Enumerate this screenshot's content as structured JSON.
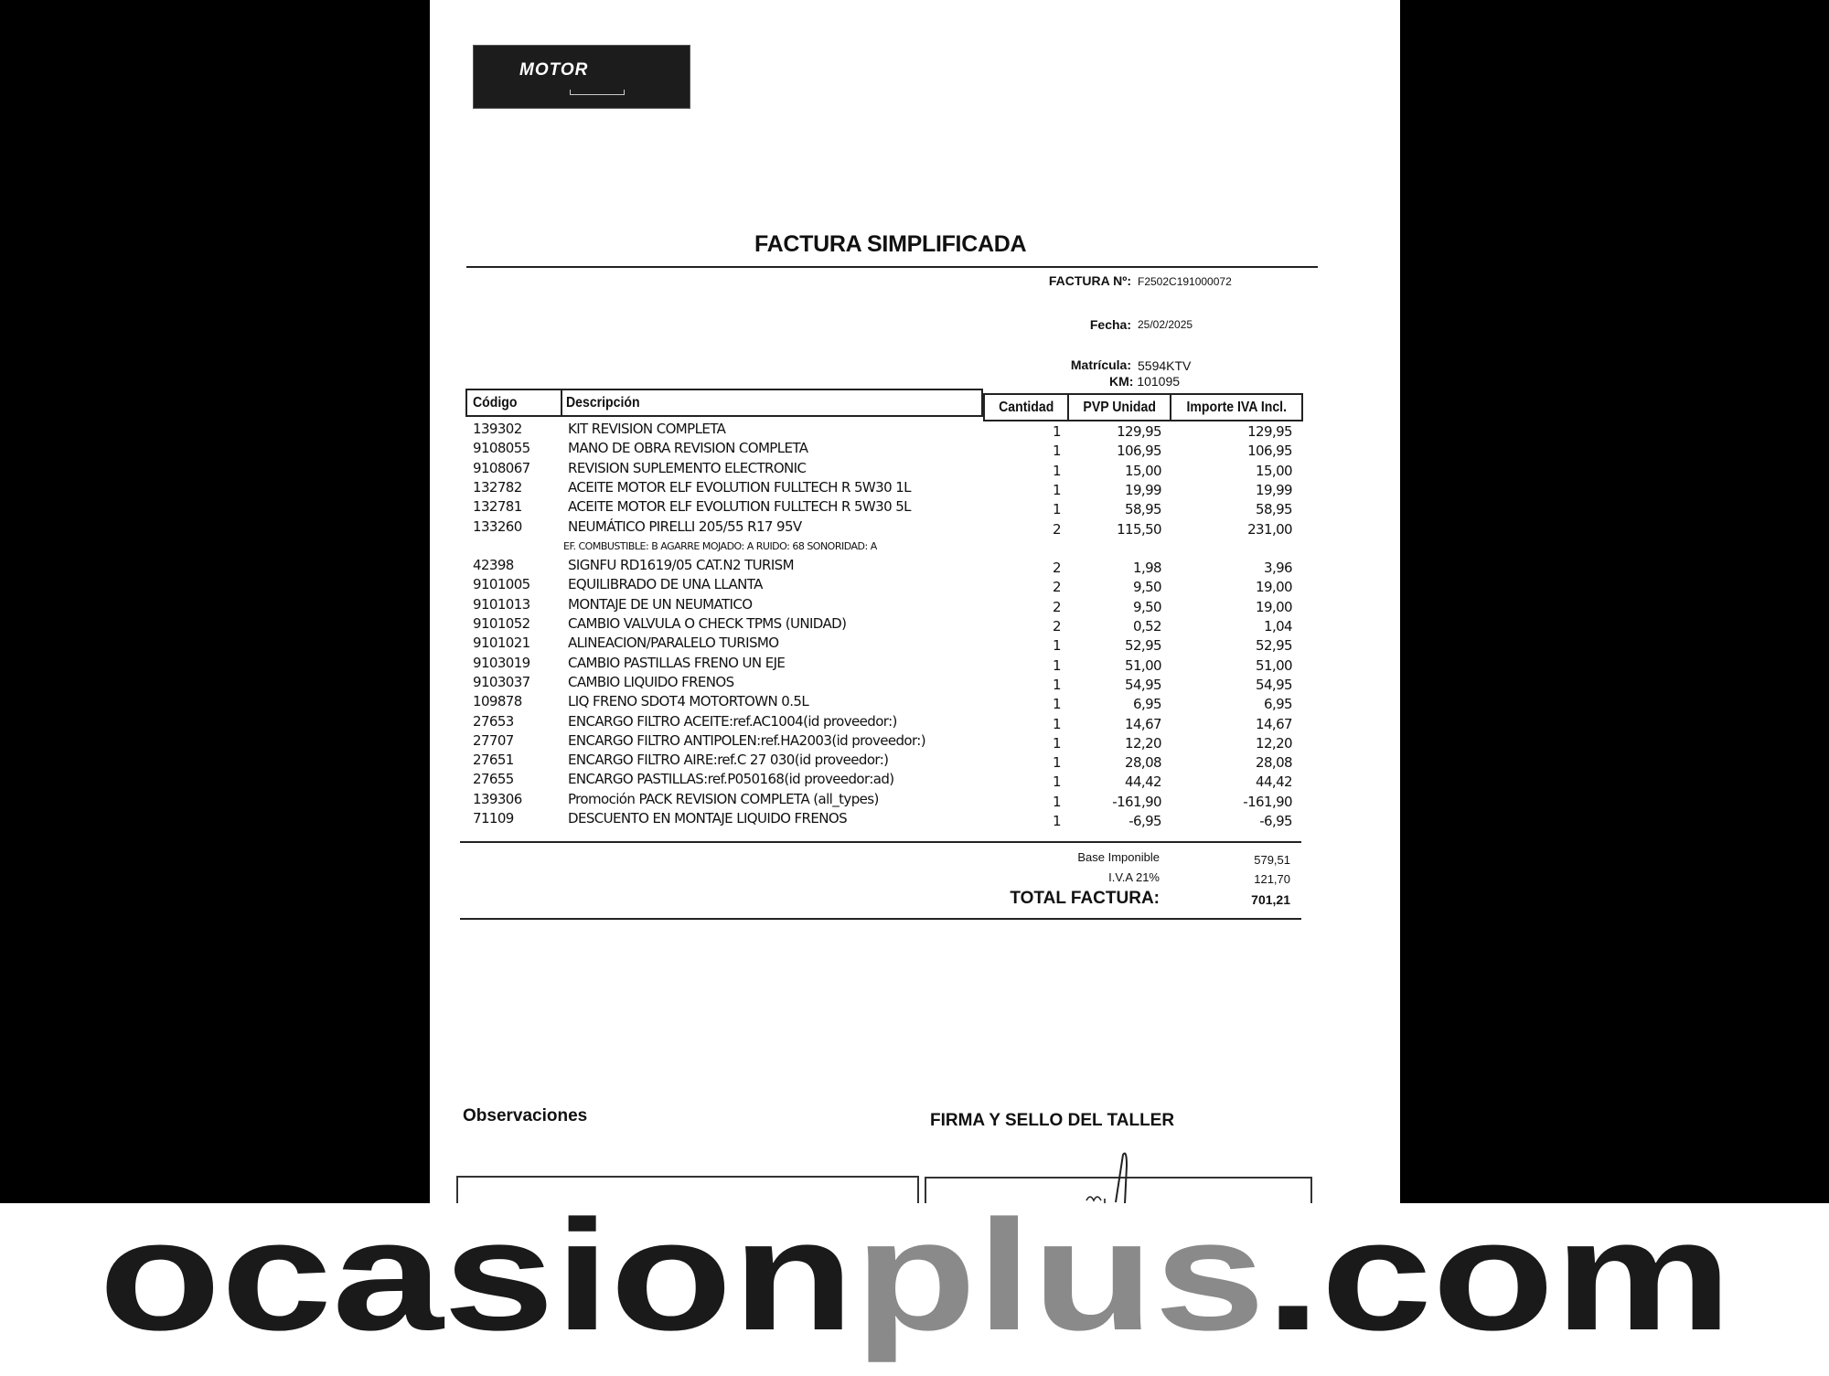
{
  "logo": {
    "text": "MOTOR"
  },
  "document": {
    "title": "FACTURA SIMPLIFICADA",
    "invoice_label": "FACTURA Nº:",
    "invoice_number": "F2502C191000072",
    "date_label": "Fecha:",
    "date": "25/02/2025",
    "plate_label": "Matrícula:",
    "plate": "5594KTV",
    "km_label": "KM:",
    "km": "101095"
  },
  "table": {
    "headers": {
      "code": "Código",
      "description": "Descripción",
      "quantity": "Cantidad",
      "unit_price": "PVP Unidad",
      "total": "Importe IVA Incl."
    },
    "rows": [
      {
        "code": "139302",
        "description": "KIT REVISION COMPLETA",
        "quantity": "1",
        "unit_price": "129,95",
        "total": "129,95"
      },
      {
        "code": "9108055",
        "description": "MANO DE OBRA REVISION COMPLETA",
        "quantity": "1",
        "unit_price": "106,95",
        "total": "106,95"
      },
      {
        "code": "9108067",
        "description": "REVISION SUPLEMENTO ELECTRONIC",
        "quantity": "1",
        "unit_price": "15,00",
        "total": "15,00"
      },
      {
        "code": "132782",
        "description": "ACEITE MOTOR ELF EVOLUTION FULLTECH R 5W30 1L",
        "quantity": "1",
        "unit_price": "19,99",
        "total": "19,99"
      },
      {
        "code": "132781",
        "description": "ACEITE MOTOR ELF EVOLUTION FULLTECH R 5W30 5L",
        "quantity": "1",
        "unit_price": "58,95",
        "total": "58,95"
      },
      {
        "code": "133260",
        "description": "NEUMÁTICO PIRELLI 205/55 R17 95V",
        "quantity": "2",
        "unit_price": "115,50",
        "total": "231,00",
        "note": "EF. COMBUSTIBLE: B AGARRE MOJADO: A RUIDO: 68 SONORIDAD: A"
      },
      {
        "code": "42398",
        "description": "SIGNFU RD1619/05 CAT.N2 TURISM",
        "quantity": "2",
        "unit_price": "1,98",
        "total": "3,96"
      },
      {
        "code": "9101005",
        "description": "EQUILIBRADO DE UNA LLANTA",
        "quantity": "2",
        "unit_price": "9,50",
        "total": "19,00"
      },
      {
        "code": "9101013",
        "description": "MONTAJE DE UN NEUMATICO",
        "quantity": "2",
        "unit_price": "9,50",
        "total": "19,00"
      },
      {
        "code": "9101052",
        "description": "CAMBIO VALVULA O CHECK TPMS (UNIDAD)",
        "quantity": "2",
        "unit_price": "0,52",
        "total": "1,04"
      },
      {
        "code": "9101021",
        "description": "ALINEACION/PARALELO TURISMO",
        "quantity": "1",
        "unit_price": "52,95",
        "total": "52,95"
      },
      {
        "code": "9103019",
        "description": "CAMBIO PASTILLAS FRENO UN EJE",
        "quantity": "1",
        "unit_price": "51,00",
        "total": "51,00"
      },
      {
        "code": "9103037",
        "description": "CAMBIO LIQUIDO FRENOS",
        "quantity": "1",
        "unit_price": "54,95",
        "total": "54,95"
      },
      {
        "code": "109878",
        "description": "LIQ FRENO SDOT4 MOTORTOWN 0.5L",
        "quantity": "1",
        "unit_price": "6,95",
        "total": "6,95"
      },
      {
        "code": "27653",
        "description": "ENCARGO FILTRO ACEITE:ref.AC1004(id proveedor:)",
        "quantity": "1",
        "unit_price": "14,67",
        "total": "14,67"
      },
      {
        "code": "27707",
        "description": "ENCARGO FILTRO ANTIPOLEN:ref.HA2003(id proveedor:)",
        "quantity": "1",
        "unit_price": "12,20",
        "total": "12,20"
      },
      {
        "code": "27651",
        "description": "ENCARGO FILTRO AIRE:ref.C 27 030(id proveedor:)",
        "quantity": "1",
        "unit_price": "28,08",
        "total": "28,08"
      },
      {
        "code": "27655",
        "description": "ENCARGO PASTILLAS:ref.P050168(id proveedor:ad)",
        "quantity": "1",
        "unit_price": "44,42",
        "total": "44,42"
      },
      {
        "code": "139306",
        "description": "Promoción PACK REVISION COMPLETA (all_types)",
        "quantity": "1",
        "unit_price": "-161,90",
        "total": "-161,90"
      },
      {
        "code": "71109",
        "description": "DESCUENTO EN MONTAJE LIQUIDO FRENOS",
        "quantity": "1",
        "unit_price": "-6,95",
        "total": "-6,95"
      }
    ]
  },
  "totals": {
    "base_label": "Base Imponible",
    "base": "579,51",
    "vat_label": "I.V.A 21%",
    "vat": "121,70",
    "total_label": "TOTAL FACTURA:",
    "total": "701,21"
  },
  "footer_section": {
    "observations_label": "Observaciones",
    "signature_label": "FIRMA Y SELLO DEL TALLER"
  },
  "watermark": {
    "part1": "ocasion",
    "part2": "plus",
    "part3": ".com",
    "color_dark": "#1a1a1a",
    "color_gray": "#8a8a8a"
  }
}
